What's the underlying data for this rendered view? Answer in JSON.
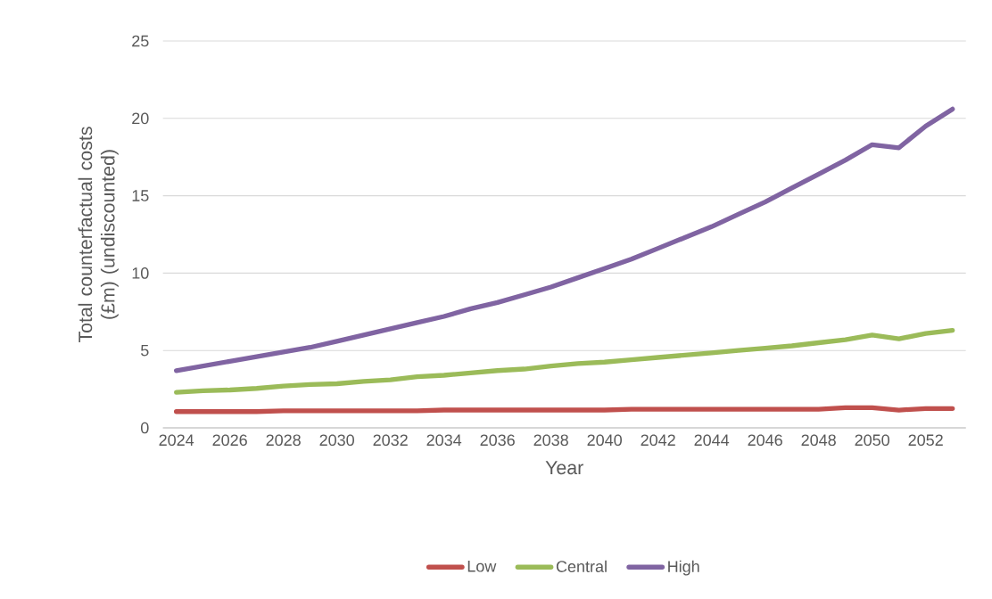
{
  "chart_data": {
    "type": "line",
    "xlabel": "Year",
    "ylabel": "Total counterfactual costs (£m) (undiscounted)",
    "x": [
      2024,
      2025,
      2026,
      2027,
      2028,
      2029,
      2030,
      2031,
      2032,
      2033,
      2034,
      2035,
      2036,
      2037,
      2038,
      2039,
      2040,
      2041,
      2042,
      2043,
      2044,
      2045,
      2046,
      2047,
      2048,
      2049,
      2050,
      2051,
      2052,
      2053
    ],
    "series": [
      {
        "name": "Low",
        "color": "#c0504d",
        "values": [
          1.05,
          1.05,
          1.05,
          1.05,
          1.1,
          1.1,
          1.1,
          1.1,
          1.1,
          1.1,
          1.15,
          1.15,
          1.15,
          1.15,
          1.15,
          1.15,
          1.15,
          1.2,
          1.2,
          1.2,
          1.2,
          1.2,
          1.2,
          1.2,
          1.2,
          1.3,
          1.3,
          1.15,
          1.25,
          1.25
        ]
      },
      {
        "name": "Central",
        "color": "#9bbb59",
        "values": [
          2.3,
          2.4,
          2.45,
          2.55,
          2.7,
          2.8,
          2.85,
          3.0,
          3.1,
          3.3,
          3.4,
          3.55,
          3.7,
          3.8,
          4.0,
          4.15,
          4.25,
          4.4,
          4.55,
          4.7,
          4.85,
          5.0,
          5.15,
          5.3,
          5.5,
          5.7,
          6.0,
          5.75,
          6.1,
          6.3
        ]
      },
      {
        "name": "High",
        "color": "#8064a2",
        "values": [
          3.7,
          4.0,
          4.3,
          4.6,
          4.9,
          5.2,
          5.6,
          6.0,
          6.4,
          6.8,
          7.2,
          7.7,
          8.1,
          8.6,
          9.1,
          9.7,
          10.3,
          10.9,
          11.6,
          12.3,
          13.0,
          13.8,
          14.6,
          15.5,
          16.4,
          17.3,
          18.3,
          18.1,
          19.5,
          20.6
        ]
      }
    ],
    "xlim": [
      2023.5,
      2053.5
    ],
    "xticks": [
      2024,
      2026,
      2028,
      2030,
      2032,
      2034,
      2036,
      2038,
      2040,
      2042,
      2044,
      2046,
      2048,
      2050,
      2052
    ],
    "ylim": [
      0,
      25
    ],
    "yticks": [
      0,
      5,
      10,
      15,
      20,
      25
    ],
    "grid": "y",
    "legend": "bottom",
    "marker": "none",
    "line_style": "solid"
  }
}
